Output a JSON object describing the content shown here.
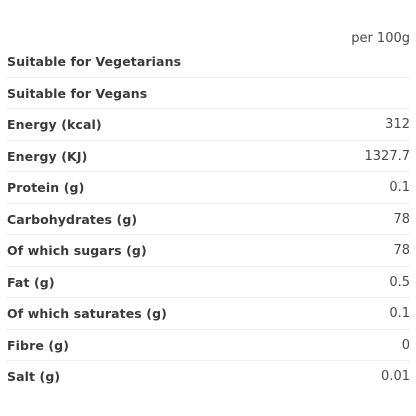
{
  "table": {
    "column_header": "per 100g",
    "rows": [
      {
        "label": "Suitable for Vegetarians",
        "value": ""
      },
      {
        "label": "Suitable for Vegans",
        "value": ""
      },
      {
        "label": "Energy (kcal)",
        "value": "312"
      },
      {
        "label": "Energy (KJ)",
        "value": "1327.7"
      },
      {
        "label": "Protein (g)",
        "value": "0.1"
      },
      {
        "label": "Carbohydrates (g)",
        "value": "78"
      },
      {
        "label": "Of which sugars (g)",
        "value": "78"
      },
      {
        "label": "Fat (g)",
        "value": "0.5"
      },
      {
        "label": "Of which saturates (g)",
        "value": "0.1"
      },
      {
        "label": "Fibre (g)",
        "value": "0"
      },
      {
        "label": "Salt (g)",
        "value": "0.01"
      }
    ]
  }
}
